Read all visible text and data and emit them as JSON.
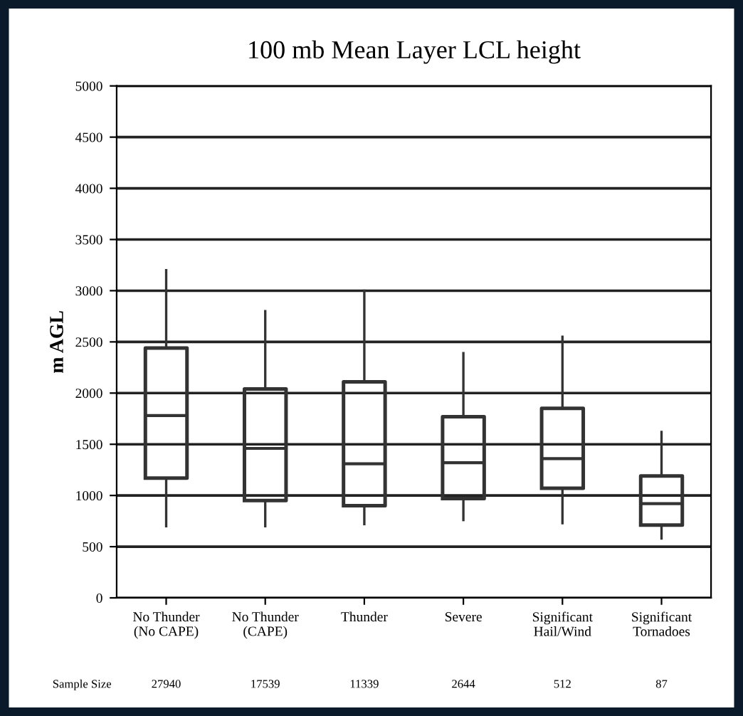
{
  "chart_data": {
    "type": "box",
    "title": "100 mb Mean Layer LCL height",
    "ylabel": "m AGL",
    "categories": [
      "No Thunder\n(No CAPE)",
      "No Thunder\n(CAPE)",
      "Thunder",
      "Severe",
      "Significant\nHail/Wind",
      "Significant\nTornadoes"
    ],
    "boxes": [
      {
        "low": 700,
        "q1": 1170,
        "median": 1780,
        "q3": 2440,
        "high": 3200
      },
      {
        "low": 700,
        "q1": 950,
        "median": 1460,
        "q3": 2040,
        "high": 2800
      },
      {
        "low": 720,
        "q1": 900,
        "median": 1310,
        "q3": 2110,
        "high": 3000
      },
      {
        "low": 760,
        "q1": 970,
        "median": 1320,
        "q3": 1770,
        "high": 2390
      },
      {
        "low": 730,
        "q1": 1070,
        "median": 1360,
        "q3": 1850,
        "high": 2550
      },
      {
        "low": 580,
        "q1": 710,
        "median": 920,
        "q3": 1190,
        "high": 1620
      }
    ],
    "color": "#333333",
    "ylim": [
      0,
      5000
    ],
    "yticks": [
      0,
      500,
      1000,
      1500,
      2000,
      2500,
      3000,
      3500,
      4000,
      4500,
      5000
    ],
    "grid": "y",
    "annotations": [
      "Sample Size",
      "27940",
      "17539",
      "11339",
      "2644",
      "512",
      "87"
    ]
  }
}
